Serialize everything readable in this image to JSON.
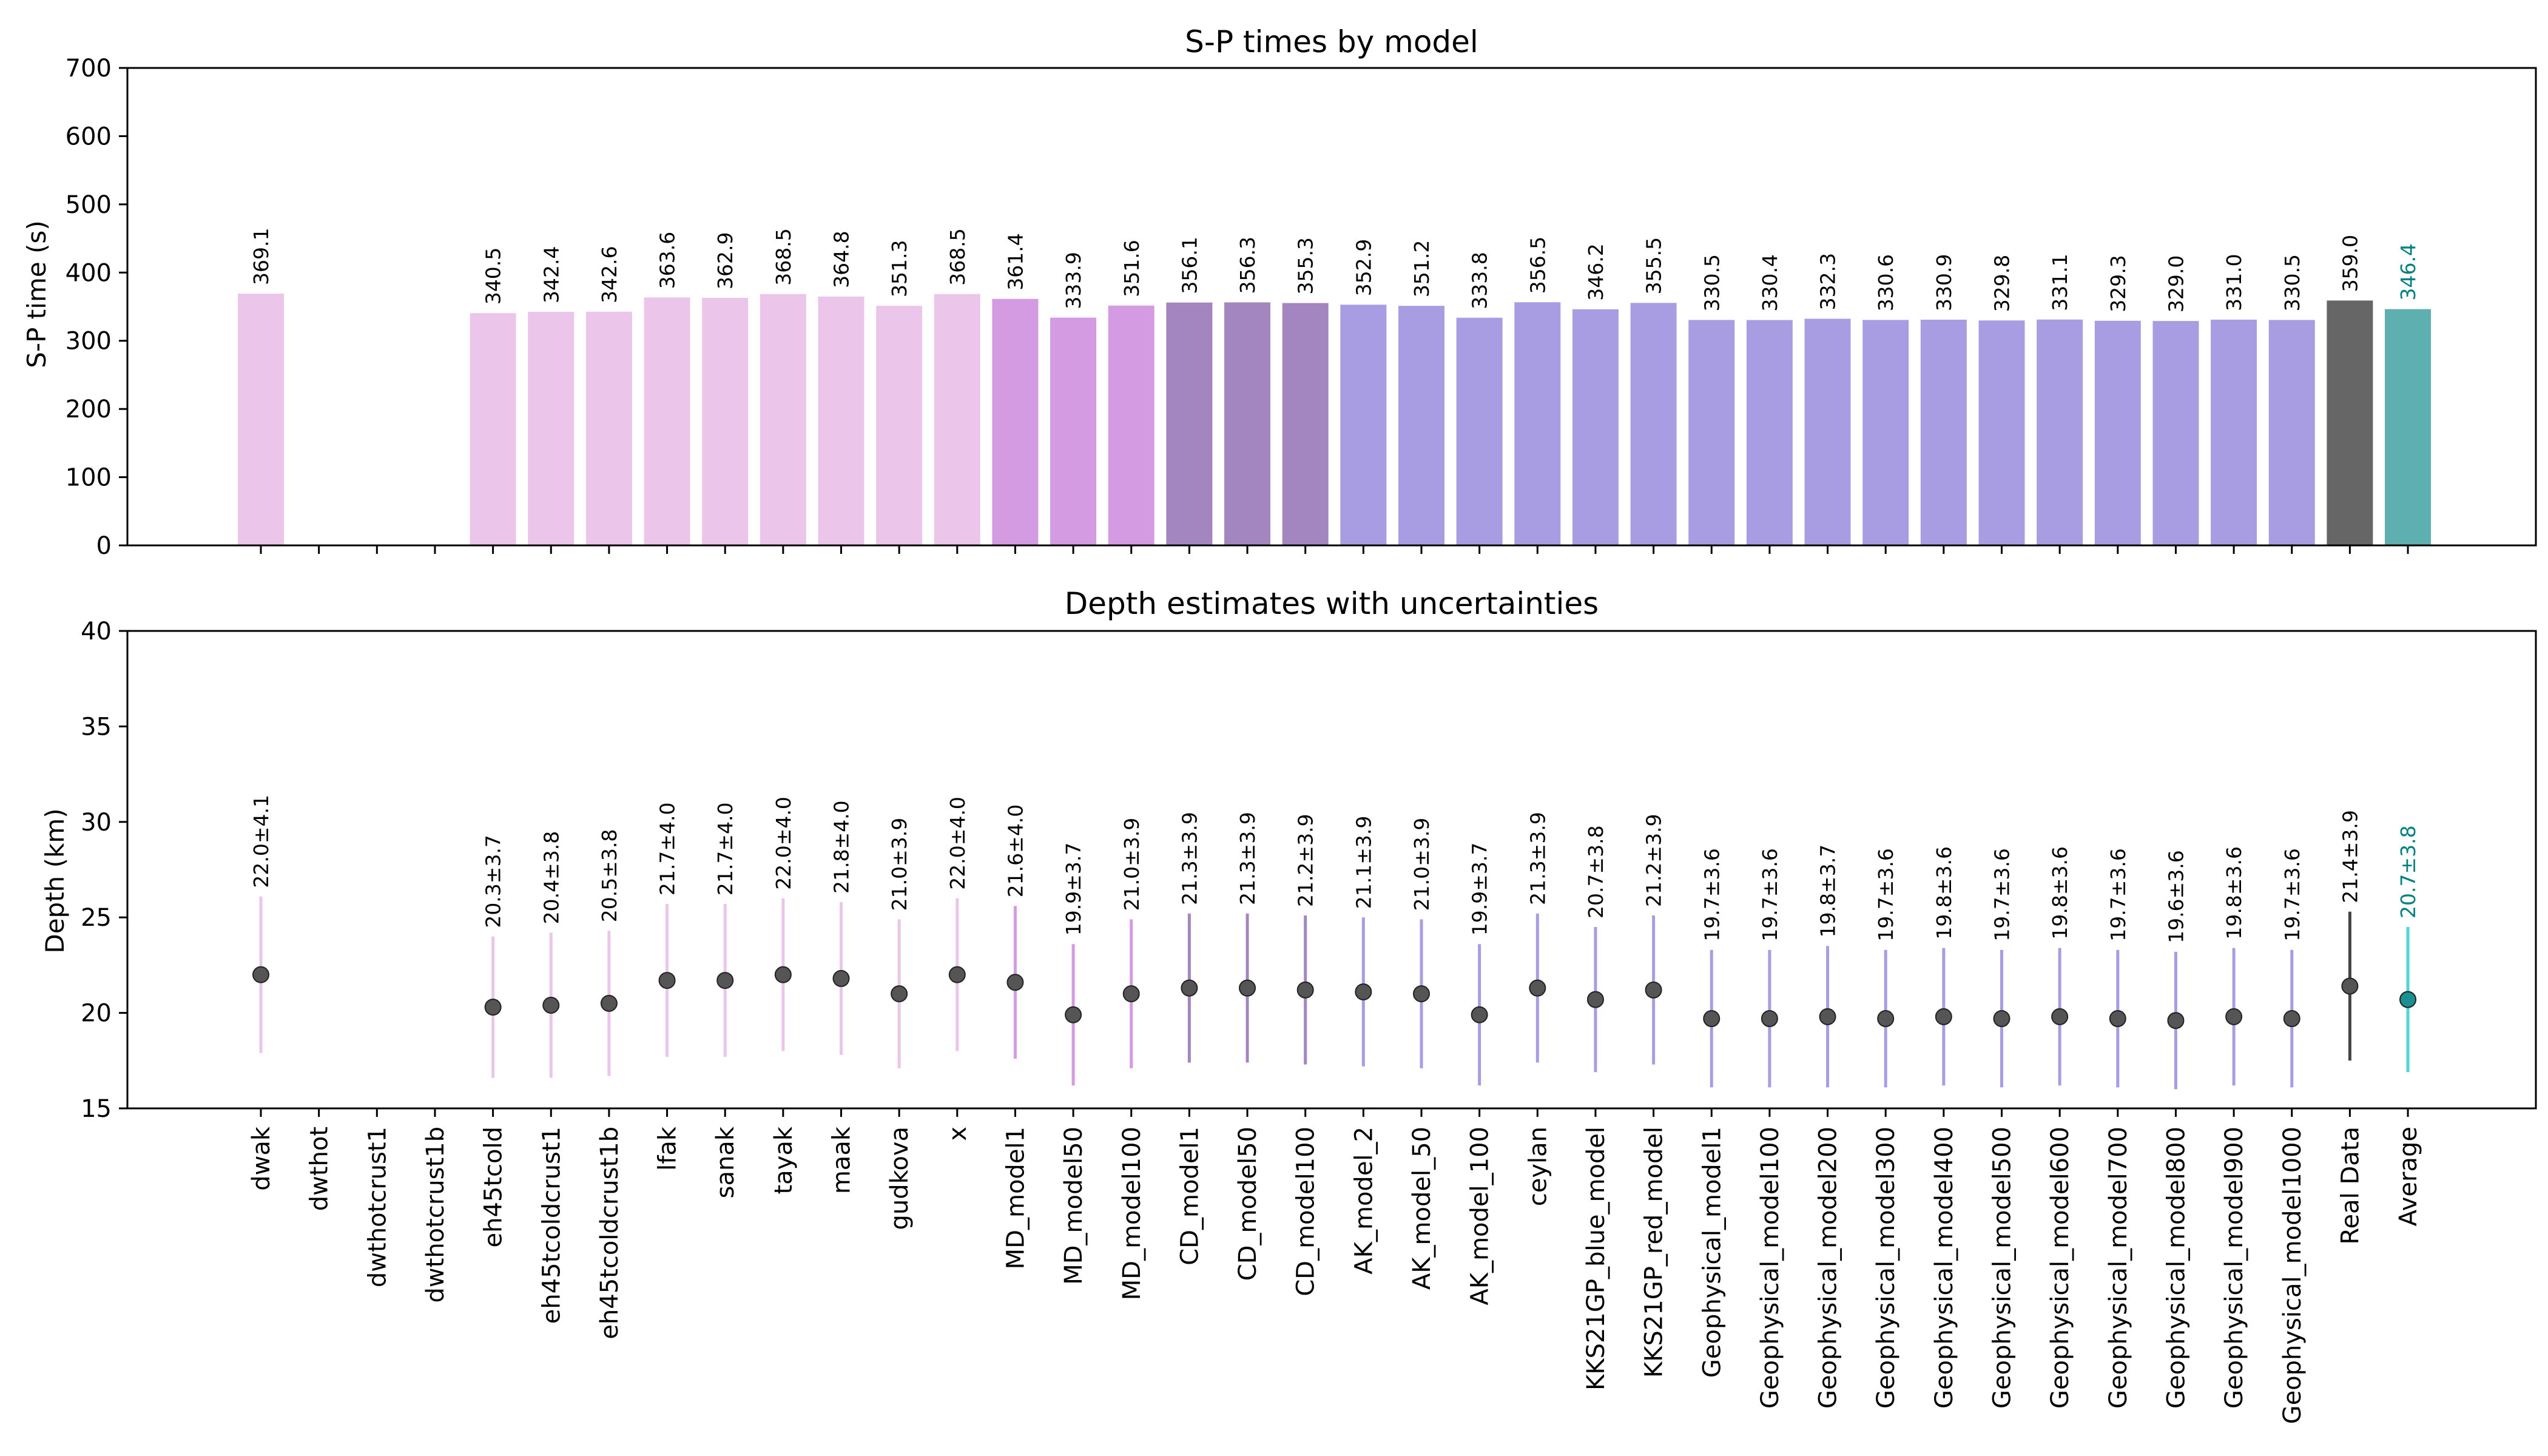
{
  "chart_data": [
    {
      "type": "bar",
      "title": "S-P times by model",
      "xlabel": "",
      "ylabel": "S-P time (s)",
      "ylim": [
        0,
        700
      ],
      "yticks": [
        0,
        100,
        200,
        300,
        400,
        500,
        600,
        700
      ],
      "categories": [
        "dwak",
        "dwthot",
        "dwthotcrust1",
        "dwthotcrust1b",
        "eh45tcold",
        "eh45tcoldcrust1",
        "eh45tcoldcrust1b",
        "lfak",
        "sanak",
        "tayak",
        "maak",
        "gudkova",
        "x",
        "MD_model1",
        "MD_model50",
        "MD_model100",
        "CD_model1",
        "CD_model50",
        "CD_model100",
        "AK_model_2",
        "AK_model_50",
        "AK_model_100",
        "ceylan",
        "KKS21GP_blue_model",
        "KKS21GP_red_model",
        "Geophysical_model1",
        "Geophysical_model100",
        "Geophysical_model200",
        "Geophysical_model300",
        "Geophysical_model400",
        "Geophysical_model500",
        "Geophysical_model600",
        "Geophysical_model700",
        "Geophysical_model800",
        "Geophysical_model900",
        "Geophysical_model1000",
        "Real Data",
        "Average"
      ],
      "values": [
        369.1,
        null,
        null,
        null,
        340.5,
        342.4,
        342.6,
        363.6,
        362.9,
        368.5,
        364.8,
        351.3,
        368.5,
        361.4,
        333.9,
        351.6,
        356.1,
        356.3,
        355.3,
        352.9,
        351.2,
        333.8,
        356.5,
        346.2,
        355.5,
        330.5,
        330.4,
        332.3,
        330.6,
        330.9,
        329.8,
        331.1,
        329.3,
        329.0,
        331.0,
        330.5,
        359.0,
        346.4
      ],
      "labels": [
        "369.1",
        "",
        "",
        "",
        "340.5",
        "342.4",
        "342.6",
        "363.6",
        "362.9",
        "368.5",
        "364.8",
        "351.3",
        "368.5",
        "361.4",
        "333.9",
        "351.6",
        "356.1",
        "356.3",
        "355.3",
        "352.9",
        "351.2",
        "333.8",
        "356.5",
        "346.2",
        "355.5",
        "330.5",
        "330.4",
        "332.3",
        "330.6",
        "330.9",
        "329.8",
        "331.1",
        "329.3",
        "329.0",
        "331.0",
        "330.5",
        "359.0",
        "346.4"
      ],
      "colors": [
        "#ebc6ea",
        "#ebc6ea",
        "#ebc6ea",
        "#ebc6ea",
        "#ebc6ea",
        "#ebc6ea",
        "#ebc6ea",
        "#ebc6ea",
        "#ebc6ea",
        "#ebc6ea",
        "#ebc6ea",
        "#ebc6ea",
        "#ebc6ea",
        "#d49be3",
        "#d49be3",
        "#d49be3",
        "#a385c0",
        "#a385c0",
        "#a385c0",
        "#a89de3",
        "#a89de3",
        "#a89de3",
        "#a89de3",
        "#a89de3",
        "#a89de3",
        "#a89de3",
        "#a89de3",
        "#a89de3",
        "#a89de3",
        "#a89de3",
        "#a89de3",
        "#a89de3",
        "#a89de3",
        "#a89de3",
        "#a89de3",
        "#a89de3",
        "#666666",
        "#5eafaf"
      ],
      "label_colors": [
        "#000000",
        "#000000",
        "#000000",
        "#000000",
        "#000000",
        "#000000",
        "#000000",
        "#000000",
        "#000000",
        "#000000",
        "#000000",
        "#000000",
        "#000000",
        "#000000",
        "#000000",
        "#000000",
        "#000000",
        "#000000",
        "#000000",
        "#000000",
        "#000000",
        "#000000",
        "#000000",
        "#000000",
        "#000000",
        "#000000",
        "#000000",
        "#000000",
        "#000000",
        "#000000",
        "#000000",
        "#000000",
        "#000000",
        "#000000",
        "#000000",
        "#000000",
        "#000000",
        "#008080"
      ],
      "grid": false
    },
    {
      "type": "scatter",
      "title": "Depth estimates with uncertainties",
      "xlabel": "",
      "ylabel": "Depth (km)",
      "ylim": [
        15,
        40
      ],
      "yticks": [
        15,
        20,
        25,
        30,
        35,
        40
      ],
      "depth": [
        22.0,
        null,
        null,
        null,
        20.3,
        20.4,
        20.5,
        21.7,
        21.7,
        22.0,
        21.8,
        21.0,
        22.0,
        21.6,
        19.9,
        21.0,
        21.3,
        21.3,
        21.2,
        21.1,
        21.0,
        19.9,
        21.3,
        20.7,
        21.2,
        19.7,
        19.7,
        19.8,
        19.7,
        19.8,
        19.7,
        19.8,
        19.7,
        19.6,
        19.8,
        19.7,
        21.4,
        20.7
      ],
      "uncertainty": [
        4.1,
        null,
        null,
        null,
        3.7,
        3.8,
        3.8,
        4.0,
        4.0,
        4.0,
        4.0,
        3.9,
        4.0,
        4.0,
        3.7,
        3.9,
        3.9,
        3.9,
        3.9,
        3.9,
        3.9,
        3.7,
        3.9,
        3.8,
        3.9,
        3.6,
        3.6,
        3.7,
        3.6,
        3.6,
        3.6,
        3.6,
        3.6,
        3.6,
        3.6,
        3.6,
        3.9,
        3.8
      ],
      "labels": [
        "22.0±4.1",
        "",
        "",
        "",
        "20.3±3.7",
        "20.4±3.8",
        "20.5±3.8",
        "21.7±4.0",
        "21.7±4.0",
        "22.0±4.0",
        "21.8±4.0",
        "21.0±3.9",
        "22.0±4.0",
        "21.6±4.0",
        "19.9±3.7",
        "21.0±3.9",
        "21.3±3.9",
        "21.3±3.9",
        "21.2±3.9",
        "21.1±3.9",
        "21.0±3.9",
        "19.9±3.7",
        "21.3±3.9",
        "20.7±3.8",
        "21.2±3.9",
        "19.7±3.6",
        "19.7±3.6",
        "19.8±3.7",
        "19.7±3.6",
        "19.8±3.6",
        "19.7±3.6",
        "19.8±3.6",
        "19.7±3.6",
        "19.6±3.6",
        "19.8±3.6",
        "19.7±3.6",
        "21.4±3.9",
        "20.7±3.8"
      ],
      "errorbar_colors": [
        "#ebc6ea",
        "#ebc6ea",
        "#ebc6ea",
        "#ebc6ea",
        "#ebc6ea",
        "#ebc6ea",
        "#ebc6ea",
        "#ebc6ea",
        "#ebc6ea",
        "#ebc6ea",
        "#ebc6ea",
        "#ebc6ea",
        "#ebc6ea",
        "#d49be3",
        "#d49be3",
        "#d49be3",
        "#a385c0",
        "#a385c0",
        "#a385c0",
        "#a89de3",
        "#a89de3",
        "#a89de3",
        "#a89de3",
        "#a89de3",
        "#a89de3",
        "#a89de3",
        "#a89de3",
        "#a89de3",
        "#a89de3",
        "#a89de3",
        "#a89de3",
        "#a89de3",
        "#a89de3",
        "#a89de3",
        "#a89de3",
        "#a89de3",
        "#444444",
        "#4fd6d6"
      ],
      "marker_colors": [
        "#555555",
        "#555555",
        "#555555",
        "#555555",
        "#555555",
        "#555555",
        "#555555",
        "#555555",
        "#555555",
        "#555555",
        "#555555",
        "#555555",
        "#555555",
        "#555555",
        "#555555",
        "#555555",
        "#555555",
        "#555555",
        "#555555",
        "#555555",
        "#555555",
        "#555555",
        "#555555",
        "#555555",
        "#555555",
        "#555555",
        "#555555",
        "#555555",
        "#555555",
        "#555555",
        "#555555",
        "#555555",
        "#555555",
        "#555555",
        "#555555",
        "#555555",
        "#555555",
        "#1a9090"
      ],
      "label_colors": [
        "#000000",
        "#000000",
        "#000000",
        "#000000",
        "#000000",
        "#000000",
        "#000000",
        "#000000",
        "#000000",
        "#000000",
        "#000000",
        "#000000",
        "#000000",
        "#000000",
        "#000000",
        "#000000",
        "#000000",
        "#000000",
        "#000000",
        "#000000",
        "#000000",
        "#000000",
        "#000000",
        "#000000",
        "#000000",
        "#000000",
        "#000000",
        "#000000",
        "#000000",
        "#000000",
        "#000000",
        "#000000",
        "#000000",
        "#000000",
        "#000000",
        "#000000",
        "#000000",
        "#008080"
      ],
      "grid": false
    }
  ]
}
